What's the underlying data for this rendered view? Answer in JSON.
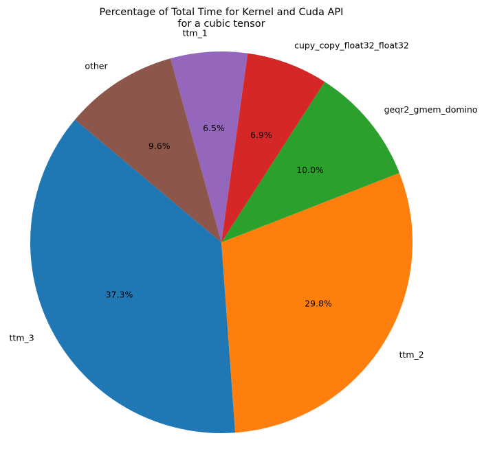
{
  "chart_data": {
    "type": "pie",
    "title_lines": [
      "Percentage of Total Time for Kernel and Cuda API",
      "for a cubic tensor"
    ],
    "start_angle_deg": 140,
    "direction": "counterclockwise",
    "legend": "none",
    "slices": [
      {
        "label": "ttm_3",
        "value": 37.3,
        "pct_label": "37.3%",
        "color": "#1f77b4"
      },
      {
        "label": "ttm_2",
        "value": 29.8,
        "pct_label": "29.8%",
        "color": "#ff7f0e"
      },
      {
        "label": "geqr2_gmem_domino",
        "value": 10.0,
        "pct_label": "10.0%",
        "color": "#2ca02c"
      },
      {
        "label": "cupy_copy_float32_float32",
        "value": 6.9,
        "pct_label": "6.9%",
        "color": "#d62728"
      },
      {
        "label": "ttm_1",
        "value": 6.5,
        "pct_label": "6.5%",
        "color": "#9467bd"
      },
      {
        "label": "other",
        "value": 9.6,
        "pct_label": "9.6%",
        "color": "#8c564b"
      }
    ]
  }
}
